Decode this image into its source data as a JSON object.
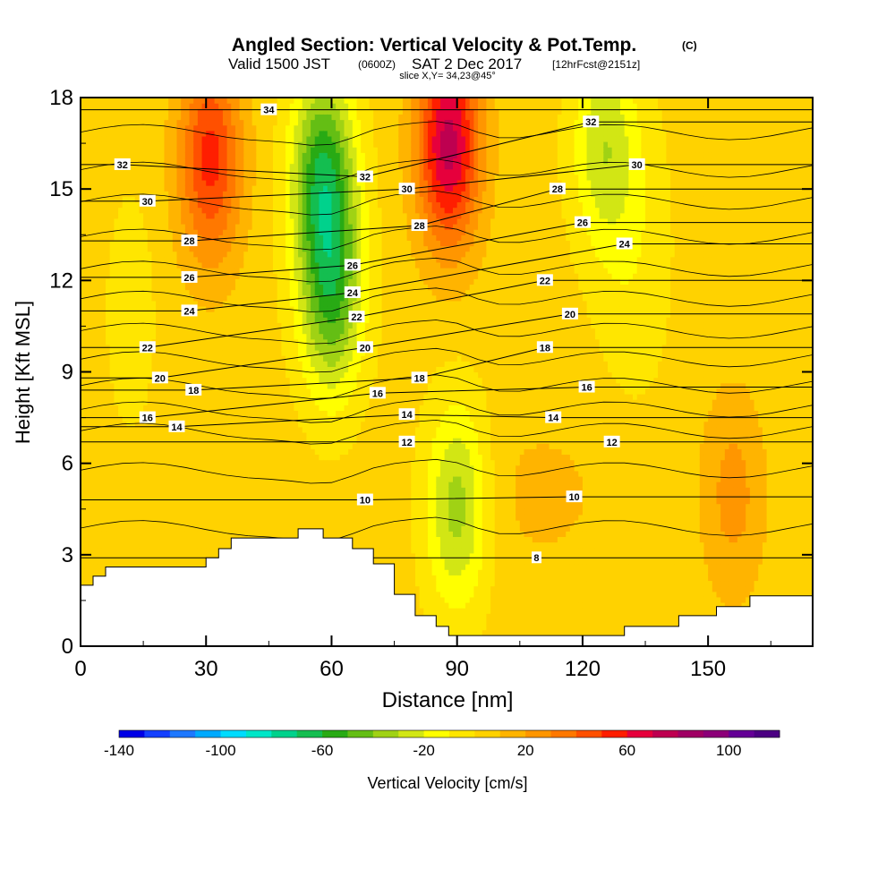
{
  "title": {
    "main": "Angled Section: Vertical Velocity & Pot.Temp.",
    "main_suffix": "(C)",
    "valid_prefix": "Valid 1500 JST",
    "valid_z": "(0600Z)",
    "valid_date": "SAT 2 Dec 2017",
    "valid_fcst": "[12hrFcst@2151z]",
    "slice": "slice X,Y= 34,23@45°"
  },
  "chart_data": {
    "type": "heatmap",
    "xlabel": "Distance [nm]",
    "ylabel": "Height [Kft MSL]",
    "xlim": [
      0,
      175
    ],
    "ylim": [
      0,
      18
    ],
    "xticks": [
      0,
      30,
      60,
      90,
      120,
      150
    ],
    "xtick_labels": [
      "0",
      "30",
      "60",
      "90",
      "120",
      "150"
    ],
    "yticks": [
      0,
      3,
      6,
      9,
      12,
      15,
      18
    ],
    "ytick_labels": [
      "0",
      "3",
      "6",
      "9",
      "12",
      "15",
      "18"
    ],
    "colorbar": {
      "label": "Vertical Velocity [cm/s]",
      "min": -140,
      "max": 120,
      "step": 10,
      "tick_values": [
        -140,
        -100,
        -60,
        -20,
        20,
        60,
        100
      ],
      "tick_labels": [
        "-140",
        "-100",
        "-60",
        "-20",
        "20",
        "60",
        "100"
      ],
      "colors": [
        "#0000e6",
        "#1440ff",
        "#1e78ff",
        "#00aaff",
        "#00dcff",
        "#00e6c8",
        "#00d28c",
        "#14be50",
        "#28aa14",
        "#64be14",
        "#a0d214",
        "#d2e614",
        "#ffff00",
        "#ffe600",
        "#ffd200",
        "#ffb400",
        "#ff9600",
        "#ff7800",
        "#ff5000",
        "#ff1e00",
        "#e6003c",
        "#be0050",
        "#a00064",
        "#8c0078",
        "#640096",
        "#4b0082"
      ]
    },
    "terrain_profile": {
      "x": [
        0,
        3,
        3,
        6,
        6,
        30,
        30,
        33,
        33,
        36,
        36,
        52,
        52,
        58,
        58,
        65,
        65,
        70,
        70,
        75,
        75,
        80,
        80,
        85,
        85,
        88,
        88,
        130,
        130,
        143,
        143,
        152,
        152,
        160,
        160,
        175
      ],
      "height": [
        2.0,
        2.0,
        2.3,
        2.3,
        2.6,
        2.6,
        2.9,
        2.9,
        3.2,
        3.2,
        3.55,
        3.55,
        3.85,
        3.85,
        3.55,
        3.55,
        3.2,
        3.2,
        2.7,
        2.7,
        1.7,
        1.7,
        1.0,
        1.0,
        0.65,
        0.65,
        0.35,
        0.35,
        0.65,
        0.65,
        1.0,
        1.0,
        1.3,
        1.3,
        1.65,
        1.65
      ]
    },
    "vertical_velocity_features": [
      {
        "name": "downdraft-1",
        "x": 58,
        "height": 15.5,
        "value": -60
      },
      {
        "name": "downdraft-2",
        "x": 60,
        "height": 11.5,
        "value": -50
      },
      {
        "name": "downdraft-3",
        "x": 90,
        "height": 4.6,
        "value": -40
      },
      {
        "name": "downdraft-4",
        "x": 125,
        "height": 16.5,
        "value": -30
      },
      {
        "name": "updraft-1",
        "x": 88,
        "height": 16.5,
        "value": 70
      },
      {
        "name": "updraft-2",
        "x": 31,
        "height": 16.0,
        "value": 50
      },
      {
        "name": "updraft-3",
        "x": 156,
        "height": 5.0,
        "value": 20
      }
    ],
    "theta_contour_labels": [
      {
        "value": "34",
        "x": 45,
        "height": 17.6
      },
      {
        "value": "32",
        "x": 10,
        "height": 15.8
      },
      {
        "value": "32",
        "x": 68,
        "height": 15.4
      },
      {
        "value": "32",
        "x": 122,
        "height": 17.2
      },
      {
        "value": "30",
        "x": 16,
        "height": 14.6
      },
      {
        "value": "30",
        "x": 78,
        "height": 15.0
      },
      {
        "value": "30",
        "x": 133,
        "height": 15.8
      },
      {
        "value": "28",
        "x": 26,
        "height": 13.3
      },
      {
        "value": "28",
        "x": 81,
        "height": 13.8
      },
      {
        "value": "28",
        "x": 114,
        "height": 15.0
      },
      {
        "value": "26",
        "x": 26,
        "height": 12.1
      },
      {
        "value": "26",
        "x": 65,
        "height": 12.5
      },
      {
        "value": "26",
        "x": 120,
        "height": 13.9
      },
      {
        "value": "24",
        "x": 26,
        "height": 11.0
      },
      {
        "value": "24",
        "x": 65,
        "height": 11.6
      },
      {
        "value": "24",
        "x": 130,
        "height": 13.2
      },
      {
        "value": "22",
        "x": 16,
        "height": 9.8
      },
      {
        "value": "22",
        "x": 66,
        "height": 10.8
      },
      {
        "value": "22",
        "x": 111,
        "height": 12.0
      },
      {
        "value": "20",
        "x": 19,
        "height": 8.8
      },
      {
        "value": "20",
        "x": 68,
        "height": 9.8
      },
      {
        "value": "20",
        "x": 117,
        "height": 10.9
      },
      {
        "value": "18",
        "x": 27,
        "height": 8.4
      },
      {
        "value": "18",
        "x": 81,
        "height": 8.8
      },
      {
        "value": "18",
        "x": 111,
        "height": 9.8
      },
      {
        "value": "16",
        "x": 16,
        "height": 7.5
      },
      {
        "value": "16",
        "x": 71,
        "height": 8.3
      },
      {
        "value": "16",
        "x": 121,
        "height": 8.5
      },
      {
        "value": "14",
        "x": 23,
        "height": 7.2
      },
      {
        "value": "14",
        "x": 78,
        "height": 7.6
      },
      {
        "value": "14",
        "x": 113,
        "height": 7.5
      },
      {
        "value": "12",
        "x": 78,
        "height": 6.7
      },
      {
        "value": "12",
        "x": 127,
        "height": 6.7
      },
      {
        "value": "10",
        "x": 68,
        "height": 4.8
      },
      {
        "value": "10",
        "x": 118,
        "height": 4.9
      },
      {
        "value": "8",
        "x": 109,
        "height": 2.9
      }
    ]
  }
}
